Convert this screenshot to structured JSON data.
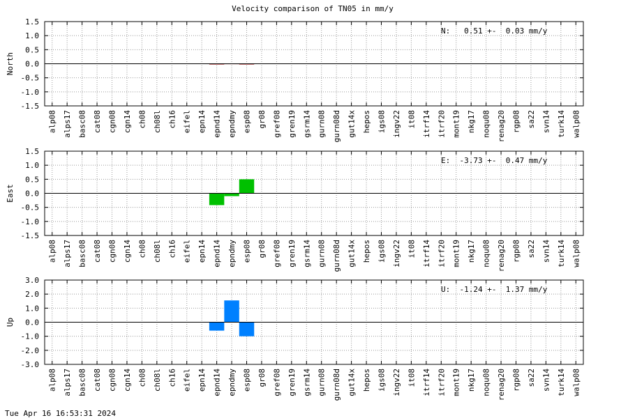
{
  "title": "Velocity comparison of TN05 in mm/y",
  "footer": "Tue Apr 16 16:53:31 2024",
  "chart_data": [
    {
      "type": "bar",
      "ylabel": "North",
      "annotation": "N:   0.51 +-  0.03 mm/y",
      "color": "#a00000",
      "categories": [
        "alp08",
        "alps17",
        "basc08",
        "cat08",
        "cgn08",
        "cgn14",
        "ch08",
        "ch08l",
        "ch16",
        "eifel",
        "epn14",
        "epnd14",
        "epndmy",
        "esp08",
        "gr08",
        "gref08",
        "gren19",
        "gsrm14",
        "gurn08",
        "gurn08d",
        "gut14x",
        "hepos",
        "igs08",
        "ingv22",
        "it08",
        "itrf14",
        "itrf20",
        "mont19",
        "nkg17",
        "noqu08",
        "renag20",
        "rgp08",
        "sa22",
        "svn14",
        "turk14",
        "walp08"
      ],
      "values": [
        null,
        null,
        null,
        null,
        null,
        null,
        null,
        null,
        null,
        null,
        null,
        -0.02,
        0.01,
        -0.02,
        null,
        null,
        null,
        null,
        null,
        null,
        null,
        null,
        null,
        null,
        null,
        null,
        null,
        null,
        null,
        null,
        null,
        null,
        null,
        null,
        null,
        null
      ],
      "ylim": [
        -1.5,
        1.5
      ],
      "yticks": [
        -1.5,
        {
          "value": -1,
          "label": "-1.0"
        },
        -0.5,
        {
          "value": 0,
          "label": "0.0"
        },
        0.5,
        {
          "value": 1,
          "label": "1.0"
        },
        1.5
      ],
      "grid": true
    },
    {
      "type": "bar",
      "ylabel": "East",
      "annotation": "E:  -3.73 +-  0.47 mm/y",
      "color": "#00c000",
      "categories": [
        "alp08",
        "alps17",
        "basc08",
        "cat08",
        "cgn08",
        "cgn14",
        "ch08",
        "ch08l",
        "ch16",
        "eifel",
        "epn14",
        "epnd14",
        "epndmy",
        "esp08",
        "gr08",
        "gref08",
        "gren19",
        "gsrm14",
        "gurn08",
        "gurn08d",
        "gut14x",
        "hepos",
        "igs08",
        "ingv22",
        "it08",
        "itrf14",
        "itrf20",
        "mont19",
        "nkg17",
        "noqu08",
        "renag20",
        "rgp08",
        "sa22",
        "svn14",
        "turk14",
        "walp08"
      ],
      "values": [
        null,
        null,
        null,
        null,
        null,
        null,
        null,
        null,
        null,
        null,
        null,
        -0.42,
        -0.1,
        0.5,
        null,
        null,
        null,
        null,
        null,
        null,
        null,
        null,
        null,
        null,
        null,
        null,
        null,
        null,
        null,
        null,
        null,
        null,
        null,
        null,
        null,
        null
      ],
      "ylim": [
        -1.5,
        1.5
      ],
      "yticks": [
        -1.5,
        {
          "value": -1,
          "label": "-1.0"
        },
        -0.5,
        {
          "value": 0,
          "label": "0.0"
        },
        0.5,
        {
          "value": 1,
          "label": "1.0"
        },
        1.5
      ],
      "grid": true
    },
    {
      "type": "bar",
      "ylabel": "Up",
      "annotation": "U:  -1.24 +-  1.37 mm/y",
      "color": "#0080ff",
      "categories": [
        "alp08",
        "alps17",
        "basc08",
        "cat08",
        "cgn08",
        "cgn14",
        "ch08",
        "ch08l",
        "ch16",
        "eifel",
        "epn14",
        "epnd14",
        "epndmy",
        "esp08",
        "gr08",
        "gref08",
        "gren19",
        "gsrm14",
        "gurn08",
        "gurn08d",
        "gut14x",
        "hepos",
        "igs08",
        "ingv22",
        "it08",
        "itrf14",
        "itrf20",
        "mont19",
        "nkg17",
        "noqu08",
        "renag20",
        "rgp08",
        "sa22",
        "svn14",
        "turk14",
        "walp08"
      ],
      "values": [
        null,
        null,
        null,
        null,
        null,
        null,
        null,
        null,
        null,
        null,
        null,
        -0.6,
        1.55,
        -1.0,
        null,
        null,
        null,
        null,
        null,
        null,
        null,
        null,
        null,
        null,
        null,
        null,
        null,
        null,
        null,
        null,
        null,
        null,
        null,
        null,
        null,
        null
      ],
      "ylim": [
        -3,
        3
      ],
      "yticks": [
        {
          "value": -3,
          "label": "-3.0"
        },
        {
          "value": -2,
          "label": "-2.0"
        },
        {
          "value": -1,
          "label": "-1.0"
        },
        {
          "value": 0,
          "label": "0.0"
        },
        {
          "value": 1,
          "label": "1.0"
        },
        {
          "value": 2,
          "label": "2.0"
        },
        {
          "value": 3,
          "label": "3.0"
        }
      ],
      "grid": true
    }
  ]
}
